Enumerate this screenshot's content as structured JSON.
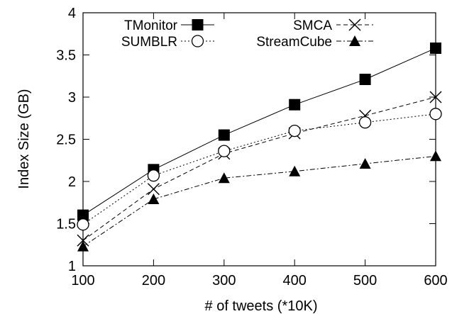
{
  "chart_data": {
    "type": "line",
    "title": "",
    "xlabel": "# of tweets (*10K)",
    "ylabel": "Index Size (GB)",
    "x": [
      100,
      200,
      300,
      400,
      500,
      600
    ],
    "xlim": [
      100,
      600
    ],
    "ylim": [
      1,
      4
    ],
    "xticks": [
      "100",
      "200",
      "300",
      "400",
      "500",
      "600"
    ],
    "yticks": [
      "1",
      "1.5",
      "2",
      "2.5",
      "3",
      "3.5",
      "4"
    ],
    "grid": false,
    "legend_position": "top",
    "series": [
      {
        "name": "TMonitor",
        "values": [
          1.6,
          2.14,
          2.55,
          2.91,
          3.21,
          3.58
        ],
        "marker": "filled-square",
        "dash": "solid"
      },
      {
        "name": "SMCA",
        "values": [
          1.3,
          1.91,
          2.33,
          2.57,
          2.78,
          3.0
        ],
        "marker": "cross",
        "dash": "dashed"
      },
      {
        "name": "SUMBLR",
        "values": [
          1.49,
          2.07,
          2.36,
          2.6,
          2.7,
          2.8
        ],
        "marker": "open-circle",
        "dash": "dotted"
      },
      {
        "name": "StreamCube",
        "values": [
          1.23,
          1.79,
          2.04,
          2.12,
          2.21,
          2.3
        ],
        "marker": "filled-triangle",
        "dash": "dash-dot"
      }
    ]
  }
}
